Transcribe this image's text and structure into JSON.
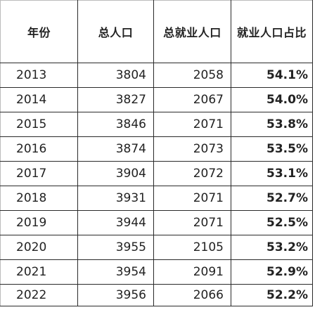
{
  "table": {
    "headers": [
      "年份",
      "总人口",
      "总就业人口",
      "就业人口占比"
    ],
    "rows": [
      [
        "2013",
        "3804",
        "2058",
        "54.1%"
      ],
      [
        "2014",
        "3827",
        "2067",
        "54.0%"
      ],
      [
        "2015",
        "3846",
        "2071",
        "53.8%"
      ],
      [
        "2016",
        "3874",
        "2073",
        "53.5%"
      ],
      [
        "2017",
        "3904",
        "2072",
        "53.1%"
      ],
      [
        "2018",
        "3931",
        "2071",
        "52.7%"
      ],
      [
        "2019",
        "3944",
        "2071",
        "52.5%"
      ],
      [
        "2020",
        "3955",
        "2105",
        "53.2%"
      ],
      [
        "2021",
        "3954",
        "2091",
        "52.9%"
      ],
      [
        "2022",
        "3956",
        "2066",
        "52.2%"
      ]
    ]
  }
}
